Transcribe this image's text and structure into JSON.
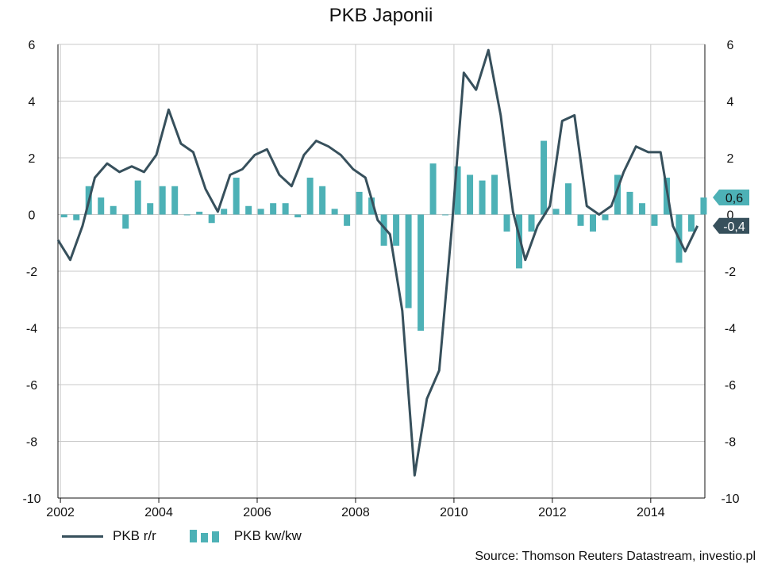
{
  "title": "PKB Japonii",
  "source": "Source: Thomson Reuters Datastream, investio.pl",
  "legend": {
    "line_label": "PKB r/r",
    "bar_label": "PKB kw/kw"
  },
  "colors": {
    "line": "#37505c",
    "bars": "#4db1b6",
    "grid": "#c8c8c8",
    "axis": "#111111"
  },
  "chart_data": {
    "type": "bar",
    "title": "PKB Japonii",
    "xlabel": "",
    "ylabel": "",
    "ylim": [
      -10,
      6
    ],
    "yticks": [
      6,
      4,
      2,
      0,
      -2,
      -4,
      -6,
      -8,
      -10
    ],
    "xticks": [
      2002,
      2004,
      2006,
      2008,
      2010,
      2012,
      2014
    ],
    "xlim": [
      2001.95,
      2015.1
    ],
    "grid": true,
    "legend_position": "bottom",
    "series": [
      {
        "name": "PKB r/r",
        "kind": "line",
        "x": [
          2001.95,
          2002.2,
          2002.45,
          2002.7,
          2002.95,
          2003.2,
          2003.45,
          2003.7,
          2003.95,
          2004.2,
          2004.45,
          2004.7,
          2004.95,
          2005.2,
          2005.45,
          2005.7,
          2005.95,
          2006.2,
          2006.45,
          2006.7,
          2006.95,
          2007.2,
          2007.45,
          2007.7,
          2007.95,
          2008.2,
          2008.45,
          2008.7,
          2008.95,
          2009.2,
          2009.45,
          2009.7,
          2009.95,
          2010.2,
          2010.45,
          2010.7,
          2010.95,
          2011.2,
          2011.45,
          2011.7,
          2011.95,
          2012.2,
          2012.45,
          2012.7,
          2012.95,
          2013.2,
          2013.45,
          2013.7,
          2013.95,
          2014.2,
          2014.45,
          2014.7,
          2014.95
        ],
        "values": [
          -0.9,
          -1.6,
          -0.4,
          1.3,
          1.8,
          1.5,
          1.7,
          1.5,
          2.1,
          3.7,
          2.5,
          2.2,
          0.9,
          0.1,
          1.4,
          1.6,
          2.1,
          2.3,
          1.4,
          1.0,
          2.1,
          2.6,
          2.4,
          2.1,
          1.6,
          1.3,
          -0.2,
          -0.7,
          -3.4,
          -9.2,
          -6.5,
          -5.5,
          -0.6,
          5.0,
          4.4,
          5.8,
          3.5,
          0.1,
          -1.6,
          -0.4,
          0.3,
          3.3,
          3.5,
          0.3,
          0.0,
          0.3,
          1.5,
          2.4,
          2.2,
          2.2,
          -0.4,
          -1.3,
          -0.4
        ]
      },
      {
        "name": "PKB kw/kw",
        "kind": "bar",
        "x": [
          2001.95,
          2002.2,
          2002.45,
          2002.7,
          2002.95,
          2003.2,
          2003.45,
          2003.7,
          2003.95,
          2004.2,
          2004.45,
          2004.7,
          2004.95,
          2005.2,
          2005.45,
          2005.7,
          2005.95,
          2006.2,
          2006.45,
          2006.7,
          2006.95,
          2007.2,
          2007.45,
          2007.7,
          2007.95,
          2008.2,
          2008.45,
          2008.7,
          2008.95,
          2009.2,
          2009.45,
          2009.7,
          2009.95,
          2010.2,
          2010.45,
          2010.7,
          2010.95,
          2011.2,
          2011.45,
          2011.7,
          2011.95,
          2012.2,
          2012.45,
          2012.7,
          2012.95,
          2013.2,
          2013.45,
          2013.7,
          2013.95,
          2014.2,
          2014.45,
          2014.7,
          2014.95
        ],
        "values": [
          -0.1,
          -0.2,
          1.0,
          0.6,
          0.3,
          -0.5,
          1.2,
          0.4,
          1.0,
          1.0,
          0.0,
          0.1,
          -0.3,
          0.2,
          1.3,
          0.3,
          0.2,
          0.4,
          0.4,
          -0.1,
          1.3,
          1.0,
          0.2,
          -0.4,
          0.8,
          0.6,
          -1.1,
          -1.1,
          -3.3,
          -4.1,
          1.8,
          0.0,
          1.7,
          1.4,
          1.2,
          1.4,
          -0.6,
          -1.9,
          -0.6,
          2.6,
          0.2,
          1.1,
          -0.4,
          -0.6,
          -0.2,
          1.4,
          0.8,
          0.4,
          -0.4,
          1.3,
          -1.7,
          -0.6,
          0.6
        ]
      }
    ],
    "annotations": [
      {
        "label": "0,6",
        "value": 0.6,
        "series": "PKB kw/kw",
        "color": "#4db1b6"
      },
      {
        "label": "-0,4",
        "value": -0.4,
        "series": "PKB r/r",
        "color": "#37505c"
      }
    ]
  }
}
